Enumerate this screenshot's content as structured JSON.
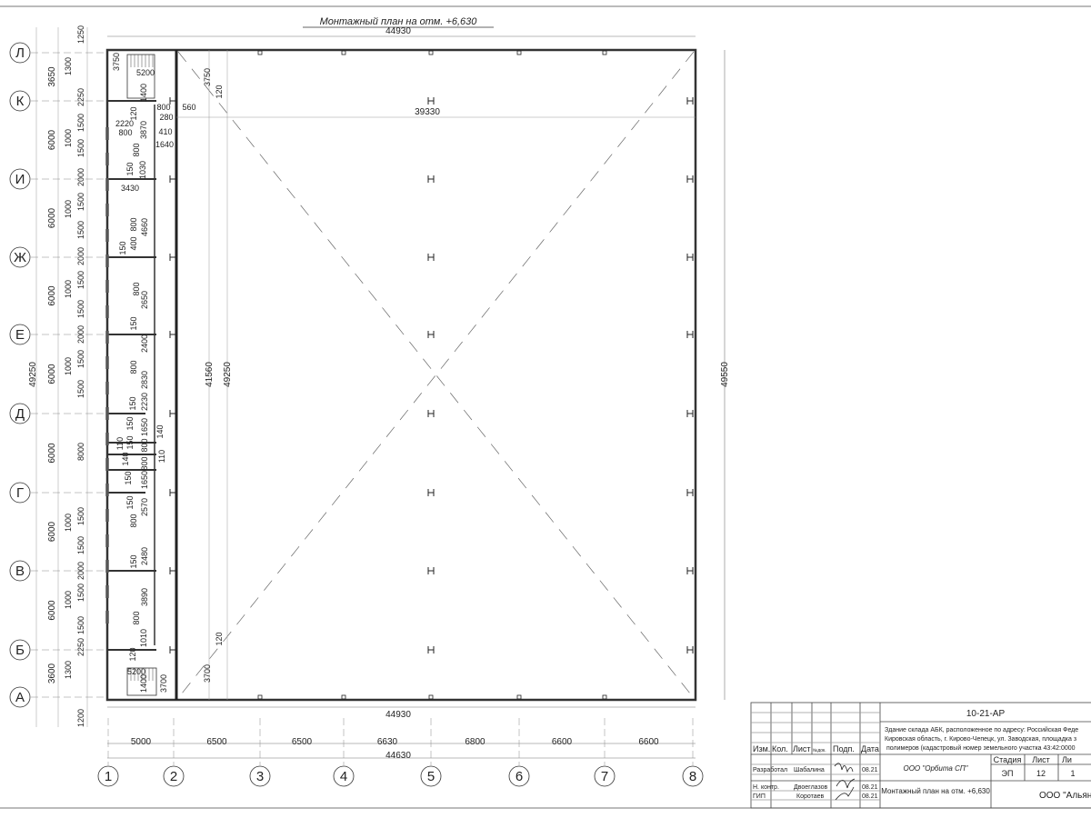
{
  "drawing": {
    "title": "Монтажный план на отм. +6,630",
    "overall_top": "44930",
    "overall_bottom": "44930",
    "inner_span": "39330",
    "right_height": "49550",
    "inner_height_1": "41560",
    "inner_height_2": "49250",
    "left_total": "49250",
    "bottom_total": "44630",
    "row_axes": [
      "Л",
      "К",
      "И",
      "Ж",
      "Е",
      "Д",
      "Г",
      "В",
      "Б",
      "А"
    ],
    "col_axes": [
      "1",
      "2",
      "3",
      "4",
      "5",
      "6",
      "7",
      "8"
    ],
    "col_spacings": [
      "5000",
      "6500",
      "6500",
      "6630",
      "6800",
      "6600",
      "6600"
    ],
    "row_spacings": [
      "3650",
      "6000",
      "6000",
      "6000",
      "6000",
      "6000",
      "6000",
      "6000",
      "3600"
    ],
    "left_chain": [
      "1250",
      "1300",
      "2250",
      "1000",
      "1500",
      "1500",
      "2000",
      "1000",
      "1500",
      "1500",
      "2000",
      "1000",
      "1500",
      "1500",
      "2000",
      "1000",
      "1500",
      "1500",
      "8000",
      "1500",
      "1000",
      "1500",
      "2000",
      "1000",
      "1500",
      "1500",
      "2250",
      "1300",
      "1200"
    ],
    "annex_dims": [
      "3750",
      "5200",
      "1400",
      "3750",
      "120",
      "120",
      "800",
      "560",
      "280",
      "2220",
      "800",
      "3870",
      "410",
      "1640",
      "800",
      "150",
      "1030",
      "3430",
      "4660",
      "800",
      "150",
      "400",
      "2650",
      "800",
      "2400",
      "150",
      "800",
      "2830",
      "150",
      "2230",
      "150",
      "1650",
      "140",
      "110",
      "150",
      "800",
      "140",
      "800",
      "110",
      "150",
      "1650",
      "150",
      "2570",
      "800",
      "150",
      "2480",
      "3890",
      "800",
      "1010",
      "120",
      "5200",
      "1400",
      "3700",
      "120",
      "3700"
    ]
  },
  "title_block": {
    "code": "10-21-АР",
    "address_lines": [
      "Здание склада АБК, расположенное по адресу: Российская Феде",
      "Кировская область, г. Кирово-Чепецк, ул. Заводская, площадка з",
      "полимеров (кадастровый номер земельного участка 43:42:0000"
    ],
    "headers": [
      "Изм.",
      "Кол.",
      "Лист",
      "№док.",
      "Подп.",
      "Дата"
    ],
    "rows": [
      {
        "role": "Разработал",
        "name": "Шабалина",
        "date": "08.21"
      },
      {
        "role": "Н. контр.",
        "name": "Двоеглазов",
        "date": "08.21"
      },
      {
        "role": "ГИП",
        "name": "Коротаев",
        "date": "08.21"
      }
    ],
    "company": "ООО \"Орбита СП\"",
    "sheet_title": "Монтажный план на отм. +6,630",
    "stage_label": "Стадия",
    "sheet_label": "Лист",
    "sheets_label": "Ли",
    "stage": "ЭП",
    "sheet": "12",
    "sheets": "1",
    "client": "ООО \"Альянс"
  }
}
